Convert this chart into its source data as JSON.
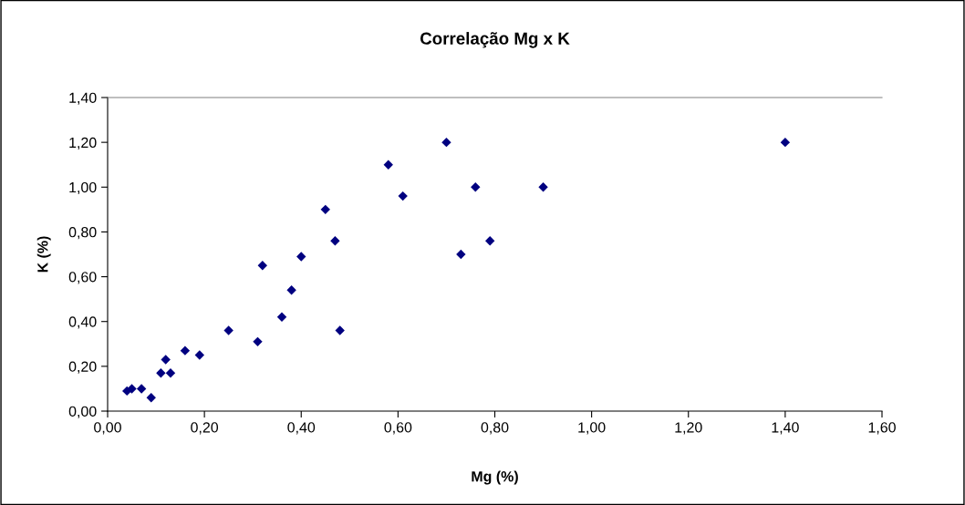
{
  "chart_data": {
    "type": "scatter",
    "title": "Correlação Mg x K",
    "xlabel": "Mg (%)",
    "ylabel": "K (%)",
    "x": [
      0.04,
      0.05,
      0.07,
      0.09,
      0.11,
      0.13,
      0.12,
      0.16,
      0.19,
      0.25,
      0.31,
      0.36,
      0.48,
      0.32,
      0.4,
      0.38,
      0.45,
      0.47,
      0.58,
      0.61,
      0.7,
      0.73,
      0.76,
      0.79,
      0.9,
      1.4
    ],
    "series": [
      {
        "color": "#000080",
        "values": [
          0.09,
          0.1,
          0.1,
          0.06,
          0.17,
          0.17,
          0.23,
          0.27,
          0.25,
          0.36,
          0.31,
          0.42,
          0.36,
          0.65,
          0.69,
          0.54,
          0.9,
          0.76,
          1.1,
          0.96,
          1.2,
          0.7,
          1.0,
          0.76,
          1.0,
          1.2
        ]
      }
    ],
    "xlim": [
      0,
      1.6
    ],
    "ylim": [
      0,
      1.4
    ],
    "xticks": [
      {
        "value": 0,
        "label": "0,00"
      },
      {
        "value": 0.2,
        "label": "0,20"
      },
      {
        "value": 0.4,
        "label": "0,40"
      },
      {
        "value": 0.6,
        "label": "0,60"
      },
      {
        "value": 0.8,
        "label": "0,80"
      },
      {
        "value": 1.0,
        "label": "1,00"
      },
      {
        "value": 1.2,
        "label": "1,20"
      },
      {
        "value": 1.4,
        "label": "1,40"
      },
      {
        "value": 1.6,
        "label": "1,60"
      }
    ],
    "yticks": [
      {
        "value": 0,
        "label": "0,00"
      },
      {
        "value": 0.2,
        "label": "0,20"
      },
      {
        "value": 0.4,
        "label": "0,40"
      },
      {
        "value": 0.6,
        "label": "0,60"
      },
      {
        "value": 0.8,
        "label": "0,80"
      },
      {
        "value": 1.0,
        "label": "1,00"
      },
      {
        "value": 1.2,
        "label": "1,20"
      },
      {
        "value": 1.4,
        "label": "1,40"
      }
    ],
    "marker": "diamond",
    "grid": false,
    "legend": false
  }
}
